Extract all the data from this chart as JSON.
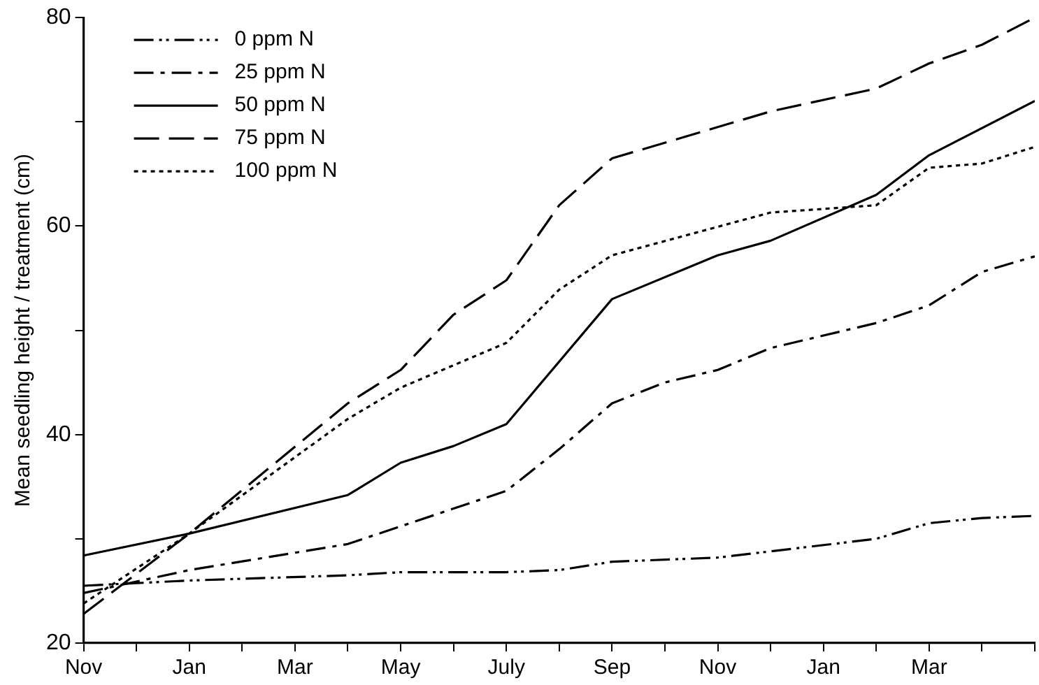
{
  "chart_data": {
    "type": "line",
    "ylabel": "Mean seedling height / treatment (cm)",
    "categories": [
      "Nov",
      null,
      "Jan",
      null,
      "Mar",
      null,
      "May",
      null,
      "July",
      null,
      "Sep",
      null,
      "Nov",
      null,
      "Jan",
      null,
      "Mar",
      null,
      null
    ],
    "ylim": [
      20,
      80
    ],
    "yticks": [
      20,
      {
        "value": 30,
        "label": null
      },
      40,
      {
        "value": 50,
        "label": null
      },
      60,
      {
        "value": 70,
        "label": null
      },
      80
    ],
    "legend": "top left",
    "marker": "none",
    "series": [
      {
        "name": "0 ppm N",
        "color": "#000000",
        "line_style": "dashdotdot",
        "values": [
          25.5,
          null,
          26,
          null,
          null,
          26.5,
          26.8,
          null,
          26.8,
          27,
          27.8,
          null,
          28.2,
          null,
          null,
          30,
          31.5,
          32,
          32.2
        ]
      },
      {
        "name": "25 ppm N",
        "color": "#000000",
        "line_style": "dashdot",
        "values": [
          24.8,
          null,
          27,
          null,
          null,
          29.5,
          null,
          null,
          34.6,
          38.6,
          43,
          45,
          46.2,
          48.3,
          null,
          50.7,
          52.4,
          55.6,
          57.1
        ]
      },
      {
        "name": "50 ppm N",
        "color": "#000000",
        "line_style": "solid",
        "values": [
          28.4,
          null,
          30.5,
          null,
          null,
          34.2,
          37.3,
          38.9,
          41,
          null,
          53,
          null,
          57.2,
          58.6,
          null,
          63,
          66.8,
          null,
          72
        ]
      },
      {
        "name": "75 ppm N",
        "color": "#000000",
        "line_style": "dashed",
        "values": [
          22.8,
          null,
          30.5,
          null,
          null,
          43,
          46.2,
          51.5,
          54.8,
          62,
          66.5,
          null,
          null,
          71,
          null,
          73.2,
          75.6,
          77.4,
          80
        ]
      },
      {
        "name": "100 ppm N",
        "color": "#000000",
        "line_style": "dotted",
        "values": [
          23.8,
          null,
          30.5,
          null,
          null,
          41.5,
          44.5,
          null,
          48.8,
          53.9,
          57.2,
          null,
          null,
          61.3,
          null,
          62,
          65.6,
          66,
          67.6
        ]
      }
    ]
  }
}
